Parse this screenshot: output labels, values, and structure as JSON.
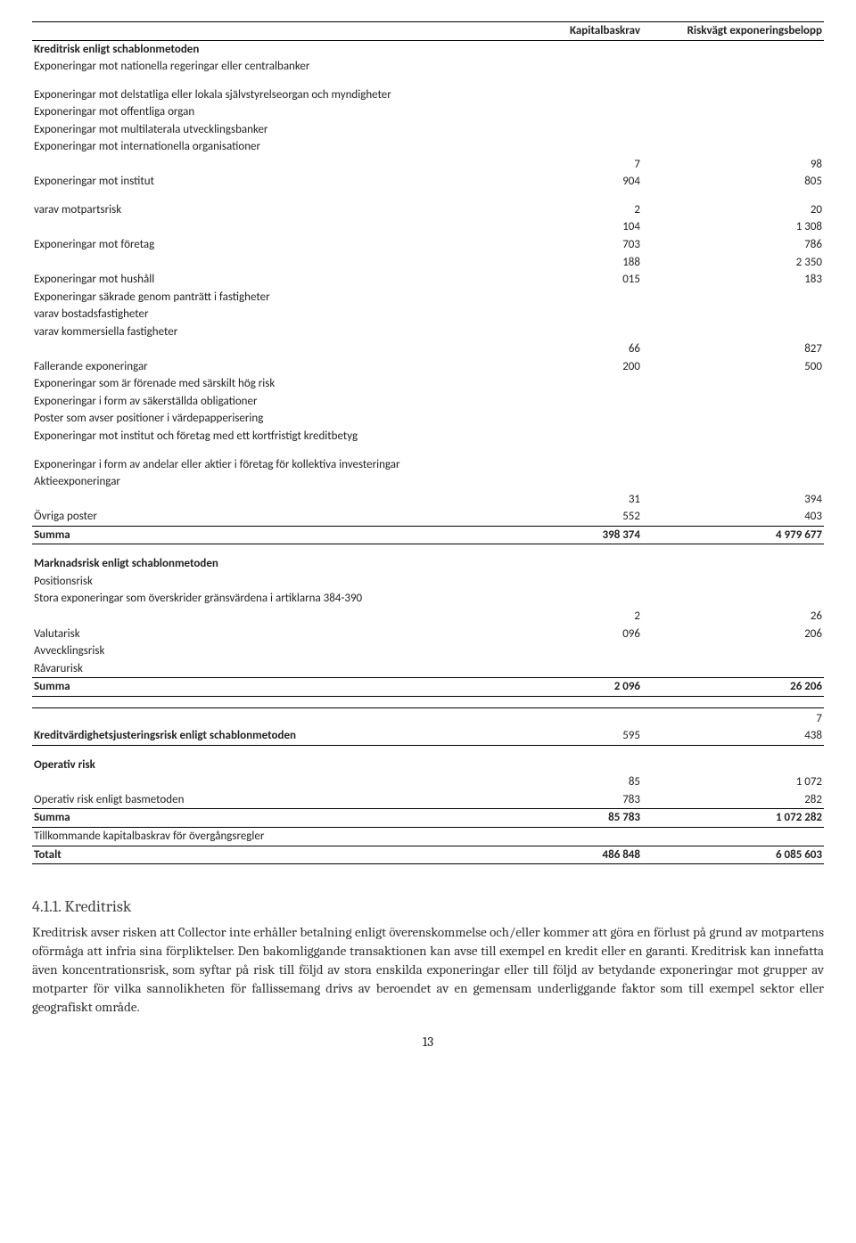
{
  "page_number": "13",
  "columns": {
    "c1": "Kapitalbaskrav",
    "c2": "Riskvägt exponeringsbelopp"
  },
  "sectionA": {
    "title": "Kreditrisk enligt schablonmetoden",
    "rows": {
      "r1": "Exponeringar mot nationella regeringar eller centralbanker",
      "r2": "Exponeringar mot delstatliga eller lokala självstyrelseorgan och myndigheter",
      "r3": "Exponeringar mot offentliga organ",
      "r4": "Exponeringar mot multilaterala utvecklingsbanker",
      "r5": "Exponeringar mot internationella organisationer",
      "r6": {
        "label": "Exponeringar mot institut",
        "v1a": "7",
        "v1b": "904",
        "v2a": "98",
        "v2b": "805"
      },
      "r7": {
        "label": "varav motpartsrisk",
        "v1a": "2",
        "v1b": "104",
        "v2a": "20",
        "v2b": "1 308"
      },
      "r8": {
        "label": "Exponeringar mot företag",
        "v1a": "703",
        "v1b": "188",
        "v2a": "786",
        "v2b": "2 350"
      },
      "r9": {
        "label": "Exponeringar mot hushåll",
        "v1": "015",
        "v2": "183"
      },
      "r10": "Exponeringar säkrade genom panträtt i fastigheter",
      "r11": "varav bostadsfastigheter",
      "r12": "varav kommersiella fastigheter",
      "r13": {
        "label": "",
        "v1a": "66",
        "v2a": "827"
      },
      "r14": {
        "label": "Fallerande exponeringar",
        "v1": "200",
        "v2": "500"
      },
      "r15": "Exponeringar som är förenade med särskilt hög risk",
      "r16": "Exponeringar i form av säkerställda obligationer",
      "r17": "Poster som avser positioner i värdepapperisering",
      "r18": "Exponeringar mot institut och företag med ett kortfristigt kreditbetyg",
      "r19": "Exponeringar i form av andelar eller aktier i företag för kollektiva investeringar",
      "r20": {
        "label": "Aktieexponeringar",
        "v1a": "31",
        "v2a": "394"
      },
      "r21": {
        "label": "Övriga poster",
        "v1": "552",
        "v2": "403"
      },
      "sum": {
        "label": "Summa",
        "v1": "398 374",
        "v2": "4 979 677"
      }
    }
  },
  "sectionB": {
    "title": "Marknadsrisk enligt schablonmetoden",
    "rows": {
      "r1": "Positionsrisk",
      "r2": "Stora exponeringar som överskrider gränsvärdena i artiklarna 384-390",
      "r3": {
        "label": "Valutarisk",
        "v1a": "2",
        "v1b": "096",
        "v2a": "26",
        "v2b": "206"
      },
      "r4": "Avvecklingsrisk",
      "r5": "Råvarurisk",
      "sum": {
        "label": "Summa",
        "v1": "2 096",
        "v2": "26 206"
      }
    }
  },
  "sectionC": {
    "row": {
      "label": "Kreditvärdighetsjusteringsrisk enligt schablonmetoden",
      "v1": "595",
      "v2a": "7",
      "v2b": "438"
    }
  },
  "sectionD": {
    "title": "Operativ risk",
    "row": {
      "label": "Operativ risk enligt basmetoden",
      "v1a": "85",
      "v1b": "783",
      "v2a": "1 072",
      "v2b": "282"
    },
    "sum": {
      "label": "Summa",
      "v1": "85 783",
      "v2": "1 072 282"
    },
    "extra": "Tillkommande kapitalbaskrav för övergångsregler",
    "total": {
      "label": "Totalt",
      "v1": "486 848",
      "v2": "6 085 603"
    }
  },
  "heading": "4.1.1. Kreditrisk",
  "paragraph": "Kreditrisk avser risken att Collector inte erhåller betalning enligt överenskommelse och/eller kommer att göra en förlust på grund av motpartens oförmåga att infria sina förpliktelser. Den bakomliggande transaktionen kan avse till exempel en kredit eller en garanti. Kreditrisk kan innefatta även koncentrationsrisk, som syftar på risk till följd av stora enskilda exponeringar eller till följd av betydande exponeringar mot grupper av motparter för vilka sannolikheten för fallissemang drivs av beroendet av en gemensam underliggande faktor som till exempel sektor eller geografiskt område."
}
